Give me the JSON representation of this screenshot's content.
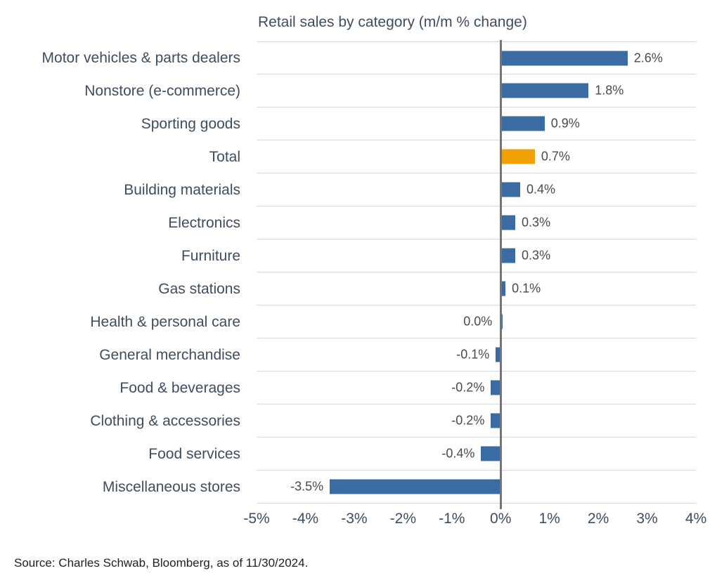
{
  "chart_data": {
    "type": "bar",
    "orientation": "horizontal",
    "title": "Retail sales by category (m/m % change)",
    "categories": [
      "Motor vehicles & parts dealers",
      "Nonstore (e-commerce)",
      "Sporting goods",
      "Total",
      "Building materials",
      "Electronics",
      "Furniture",
      "Gas stations",
      "Health & personal care",
      "General merchandise",
      "Food & beverages",
      "Clothing & accessories",
      "Food services",
      "Miscellaneous stores"
    ],
    "values": [
      2.6,
      1.8,
      0.9,
      0.7,
      0.4,
      0.3,
      0.3,
      0.1,
      0.0,
      -0.1,
      -0.2,
      -0.2,
      -0.4,
      -3.5
    ],
    "labels": [
      "2.6%",
      "1.8%",
      "0.9%",
      "0.7%",
      "0.4%",
      "0.3%",
      "0.3%",
      "0.1%",
      "0.0%",
      "-0.1%",
      "-0.2%",
      "-0.2%",
      "-0.4%",
      "-3.5%"
    ],
    "highlight_category": "Total",
    "colors": {
      "bar": "#3A6BA2",
      "highlight": "#F2A104",
      "zero_line": "#757575",
      "gridline": "#d9d9d9",
      "label_text": "#3F4D5E",
      "value_text": "#4a4a4a"
    },
    "xlim": [
      -5,
      4
    ],
    "x_tick_values": [
      -5,
      -4,
      -3,
      -2,
      -1,
      0,
      1,
      2,
      3,
      4
    ],
    "x_tick_labels": [
      "-5%",
      "-4%",
      "-3%",
      "-2%",
      "-1%",
      "0%",
      "1%",
      "2%",
      "3%",
      "4%"
    ],
    "legend": "none",
    "grid": "horizontal row separators only"
  },
  "source_note": "Source: Charles Schwab, Bloomberg, as of 11/30/2024."
}
